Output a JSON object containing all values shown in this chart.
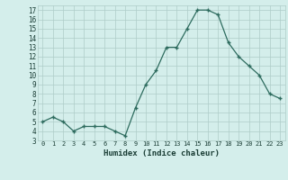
{
  "xlabel": "Humidex (Indice chaleur)",
  "x": [
    0,
    1,
    2,
    3,
    4,
    5,
    6,
    7,
    8,
    9,
    10,
    11,
    12,
    13,
    14,
    15,
    16,
    17,
    18,
    19,
    20,
    21,
    22,
    23
  ],
  "y": [
    5.0,
    5.5,
    5.0,
    4.0,
    4.5,
    4.5,
    4.5,
    4.0,
    3.5,
    6.5,
    9.0,
    10.5,
    13.0,
    13.0,
    15.0,
    17.0,
    17.0,
    16.5,
    13.5,
    12.0,
    11.0,
    10.0,
    8.0,
    7.5
  ],
  "line_color": "#2d6b5e",
  "marker": "+",
  "bg_color": "#d4eeeb",
  "grid_color": "#aeccc8",
  "tick_color": "#1a3d35",
  "label_color": "#1a3d35",
  "ylim": [
    3,
    17.5
  ],
  "yticks": [
    3,
    4,
    5,
    6,
    7,
    8,
    9,
    10,
    11,
    12,
    13,
    14,
    15,
    16,
    17
  ],
  "xlim": [
    -0.5,
    23.5
  ]
}
